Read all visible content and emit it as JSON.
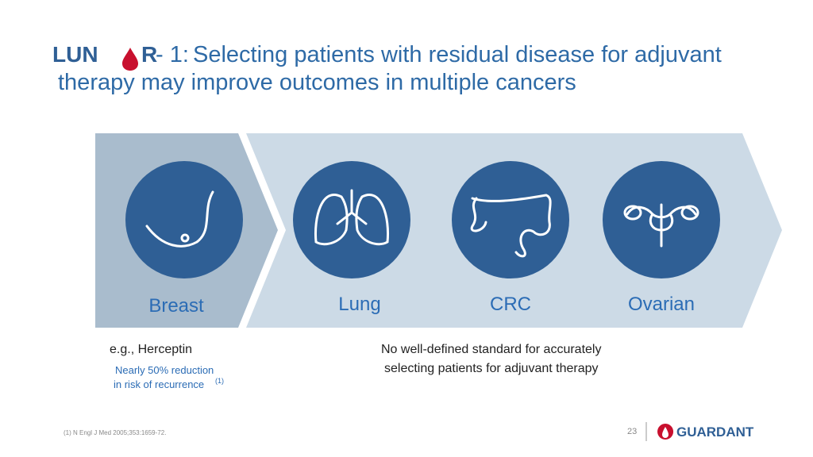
{
  "header": {
    "logo_left": "LUN",
    "logo_right": "R",
    "suffix": "- 1:",
    "title_lines": [
      "Selecting patients with residual disease for adjuvant",
      "therapy may improve outcomes in multiple cancers"
    ]
  },
  "panels": [
    {
      "label": "Breast"
    },
    {
      "label": "Lung"
    },
    {
      "label": "CRC"
    },
    {
      "label": "Ovarian"
    }
  ],
  "notes": {
    "breast_heading": "e.g., Herceptin",
    "breast_detail_lines": [
      "Nearly 50% reduction",
      "in risk of recurrence"
    ],
    "breast_ref": "(1)",
    "others_lines": [
      "No well-defined standard for accurately",
      "selecting patients for adjuvant therapy"
    ]
  },
  "footer": {
    "reference": "(1) N Engl J Med 2005;353:1659-72.",
    "page": "23",
    "brand": "GUARDANT"
  }
}
